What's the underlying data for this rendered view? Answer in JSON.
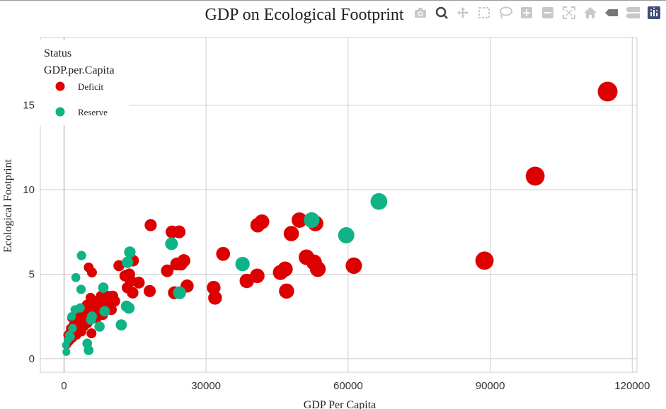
{
  "chart_data": {
    "type": "scatter",
    "title": "GDP on Ecological Footprint",
    "xlabel": "GDP Per Capita",
    "ylabel": "Ecological Footprint",
    "xlim": [
      -5000,
      121000
    ],
    "ylim": [
      -0.8,
      19.0
    ],
    "xticks": [
      0,
      30000,
      60000,
      90000,
      120000
    ],
    "xtick_labels": [
      "0",
      "30000",
      "60000",
      "90000",
      "120000"
    ],
    "yticks": [
      0,
      5,
      10,
      15
    ],
    "ytick_labels": [
      "0",
      "5",
      "10",
      "15"
    ],
    "grid": true,
    "marker_size_by": "GDP.per.Capita",
    "legend": {
      "placement": "top-left",
      "title_lines": [
        "Status",
        "GDP.per.Capita"
      ]
    },
    "series": [
      {
        "name": "Deficit",
        "color": "#dd0000",
        "points": [
          [
            114800,
            15.8
          ],
          [
            99500,
            10.8
          ],
          [
            88800,
            5.8
          ],
          [
            61200,
            5.5
          ],
          [
            53600,
            5.3
          ],
          [
            53100,
            8.0
          ],
          [
            52800,
            5.7
          ],
          [
            51200,
            6.0
          ],
          [
            49700,
            8.2
          ],
          [
            48000,
            7.4
          ],
          [
            47000,
            4.0
          ],
          [
            46700,
            5.3
          ],
          [
            45700,
            5.1
          ],
          [
            41800,
            8.1
          ],
          [
            40900,
            7.9
          ],
          [
            40800,
            4.9
          ],
          [
            38600,
            4.6
          ],
          [
            33600,
            6.2
          ],
          [
            31900,
            3.6
          ],
          [
            31600,
            4.2
          ],
          [
            26000,
            4.3
          ],
          [
            25300,
            5.8
          ],
          [
            24700,
            5.6
          ],
          [
            24300,
            7.5
          ],
          [
            23800,
            5.6
          ],
          [
            23300,
            3.9
          ],
          [
            22800,
            7.5
          ],
          [
            21800,
            5.2
          ],
          [
            18300,
            7.9
          ],
          [
            18100,
            4.0
          ],
          [
            15800,
            4.5
          ],
          [
            14600,
            5.8
          ],
          [
            14500,
            3.9
          ],
          [
            14100,
            4.6
          ],
          [
            13800,
            5.0
          ],
          [
            13400,
            4.2
          ],
          [
            12900,
            4.9
          ],
          [
            11600,
            5.5
          ],
          [
            10700,
            3.4
          ],
          [
            10300,
            3.7
          ],
          [
            10000,
            2.9
          ],
          [
            9700,
            3.3
          ],
          [
            9300,
            3.7
          ],
          [
            8900,
            3.0
          ],
          [
            8500,
            3.4
          ],
          [
            8200,
            2.6
          ],
          [
            7800,
            3.7
          ],
          [
            7500,
            3.2
          ],
          [
            7200,
            2.8
          ],
          [
            6900,
            2.4
          ],
          [
            6500,
            3.4
          ],
          [
            6200,
            3.1
          ],
          [
            5900,
            5.1
          ],
          [
            5800,
            1.5
          ],
          [
            5600,
            3.6
          ],
          [
            5400,
            2.7
          ],
          [
            5200,
            5.4
          ],
          [
            5000,
            2.1
          ],
          [
            4800,
            3.2
          ],
          [
            4600,
            2.3
          ],
          [
            4400,
            2.8
          ],
          [
            4200,
            1.9
          ],
          [
            4000,
            2.5
          ],
          [
            3800,
            3.0
          ],
          [
            3700,
            1.6
          ],
          [
            3500,
            2.2
          ],
          [
            3300,
            2.7
          ],
          [
            3100,
            1.8
          ],
          [
            2900,
            2.2
          ],
          [
            2700,
            1.4
          ],
          [
            2500,
            2.6
          ],
          [
            2300,
            1.9
          ],
          [
            2100,
            1.5
          ],
          [
            1900,
            2.0
          ],
          [
            1800,
            1.2
          ],
          [
            1600,
            2.4
          ],
          [
            1500,
            1.6
          ],
          [
            1400,
            1.1
          ],
          [
            1300,
            1.8
          ],
          [
            1200,
            1.3
          ],
          [
            1100,
            1.0
          ],
          [
            1000,
            1.5
          ],
          [
            900,
            1.2
          ],
          [
            800,
            0.9
          ],
          [
            700,
            1.4
          ],
          [
            600,
            0.8
          ]
        ]
      },
      {
        "name": "Reserve",
        "color": "#10b386",
        "points": [
          [
            66500,
            9.3
          ],
          [
            59600,
            7.3
          ],
          [
            52300,
            8.2
          ],
          [
            37700,
            5.6
          ],
          [
            24400,
            3.9
          ],
          [
            22700,
            6.8
          ],
          [
            13900,
            6.3
          ],
          [
            13700,
            3.0
          ],
          [
            13400,
            5.7
          ],
          [
            13200,
            3.1
          ],
          [
            12100,
            2.0
          ],
          [
            8600,
            2.8
          ],
          [
            8300,
            4.2
          ],
          [
            7500,
            1.9
          ],
          [
            5900,
            2.5
          ],
          [
            5700,
            2.3
          ],
          [
            5200,
            0.5
          ],
          [
            4900,
            0.9
          ],
          [
            3700,
            6.1
          ],
          [
            3600,
            4.1
          ],
          [
            3400,
            3.0
          ],
          [
            2500,
            4.8
          ],
          [
            2300,
            2.9
          ],
          [
            1800,
            1.8
          ],
          [
            1600,
            2.5
          ],
          [
            1400,
            1.3
          ],
          [
            1100,
            1.4
          ],
          [
            800,
            1.1
          ],
          [
            500,
            0.4
          ],
          [
            400,
            0.8
          ]
        ]
      }
    ]
  },
  "modebar": {
    "buttons": [
      "camera-icon",
      "zoom-icon",
      "pan-icon",
      "box-select-icon",
      "lasso-select-icon",
      "zoom-in-icon",
      "zoom-out-icon",
      "autoscale-icon",
      "reset-axes-icon",
      "hover-closest-icon",
      "hover-compare-icon",
      "plotly-logo-icon"
    ]
  }
}
